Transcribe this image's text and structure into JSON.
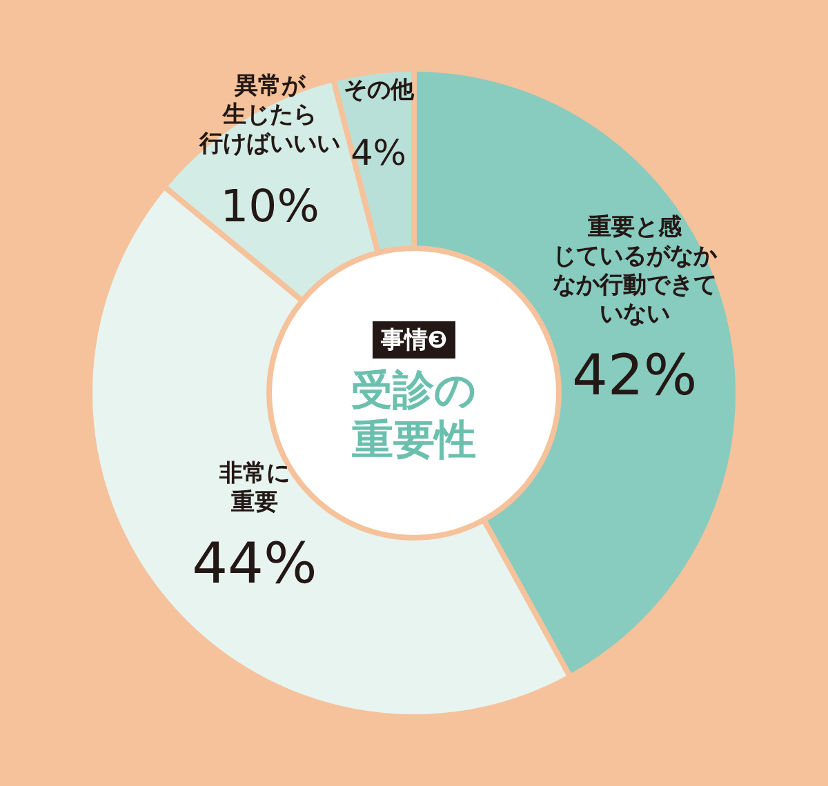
{
  "chart_data": {
    "type": "donut",
    "title": "受診の重要性",
    "subtitle": "事情❸",
    "categories": [
      "重要と感じているがなかなか行動できていない",
      "非常に重要",
      "異常が生じたら行けばいいい",
      "その他"
    ],
    "values": [
      42,
      44,
      10,
      4
    ],
    "colors": [
      "#88cbbf",
      "#e8f4f0",
      "#d4ece6",
      "#b9e0d8"
    ],
    "value_labels": [
      "42%",
      "44%",
      "10%",
      "4%"
    ]
  }
}
